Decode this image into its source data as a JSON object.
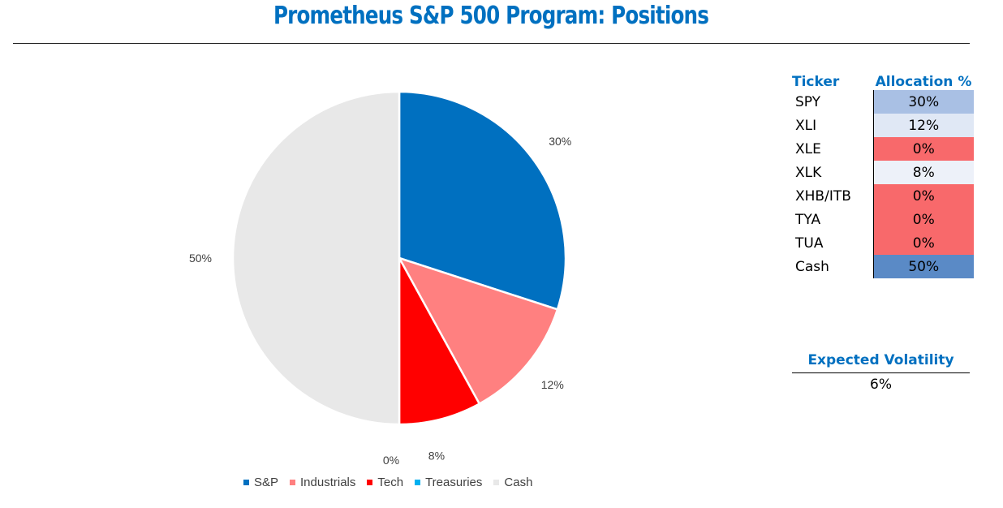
{
  "title": "Prometheus S&P 500 Program: Positions",
  "chart_data": {
    "type": "pie",
    "categories": [
      "S&P",
      "Industrials",
      "Tech",
      "Treasuries",
      "Cash"
    ],
    "values": [
      30,
      12,
      8,
      0,
      50
    ],
    "data_labels": [
      "30%",
      "12%",
      "8%",
      "0%",
      "50%"
    ],
    "colors": [
      "#0070c0",
      "#ff8080",
      "#ff0000",
      "#00b0f0",
      "#e8e8e8"
    ],
    "legend_position": "bottom"
  },
  "table": {
    "headers": {
      "ticker": "Ticker",
      "allocation": "Allocation %"
    },
    "rows": [
      {
        "ticker": "SPY",
        "allocation": "30%",
        "color": "#a9c0e4"
      },
      {
        "ticker": "XLI",
        "allocation": "12%",
        "color": "#e0e8f5"
      },
      {
        "ticker": "XLE",
        "allocation": "0%",
        "color": "#f8696b"
      },
      {
        "ticker": "XLK",
        "allocation": "8%",
        "color": "#edf1f9"
      },
      {
        "ticker": "XHB/ITB",
        "allocation": "0%",
        "color": "#f8696b"
      },
      {
        "ticker": "TYA",
        "allocation": "0%",
        "color": "#f8696b"
      },
      {
        "ticker": "TUA",
        "allocation": "0%",
        "color": "#f8696b"
      },
      {
        "ticker": "Cash",
        "allocation": "50%",
        "color": "#5a8ac6"
      }
    ]
  },
  "volatility": {
    "label": "Expected Volatility",
    "value": "6%"
  }
}
